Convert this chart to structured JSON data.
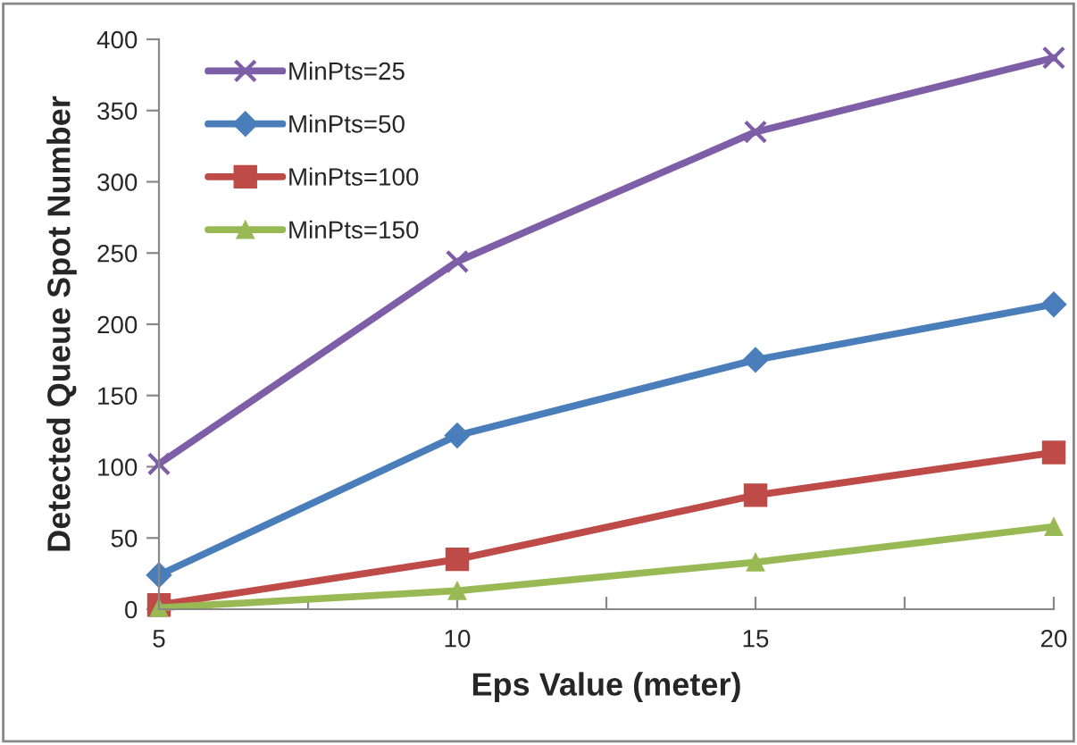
{
  "chart_data": {
    "type": "line",
    "xlabel": "Eps Value (meter)",
    "ylabel": "Detected Queue Spot Number",
    "x": [
      5,
      10,
      15,
      20
    ],
    "series": [
      {
        "name": "MinPts=25",
        "color": "#7f5ea8",
        "marker": "cross",
        "values": [
          102,
          244,
          335,
          387
        ]
      },
      {
        "name": "MinPts=50",
        "color": "#4a7ebb",
        "marker": "diamond",
        "values": [
          24,
          122,
          175,
          214
        ]
      },
      {
        "name": "MinPts=100",
        "color": "#be4b48",
        "marker": "square",
        "values": [
          3,
          35,
          80,
          110
        ]
      },
      {
        "name": "MinPts=150",
        "color": "#98b954",
        "marker": "triangle",
        "values": [
          1,
          13,
          33,
          58
        ]
      }
    ],
    "xlim": [
      5,
      20
    ],
    "xticks": [
      5,
      {
        "value": 7.5,
        "label": null
      },
      10,
      {
        "value": 12.5,
        "label": null
      },
      15,
      {
        "value": 17.5,
        "label": null
      },
      20
    ],
    "ylim": [
      0,
      400
    ],
    "yticks": [
      0,
      50,
      100,
      150,
      200,
      250,
      300,
      350,
      400
    ],
    "grid": false,
    "legend": "top left",
    "line_style": "solid"
  }
}
